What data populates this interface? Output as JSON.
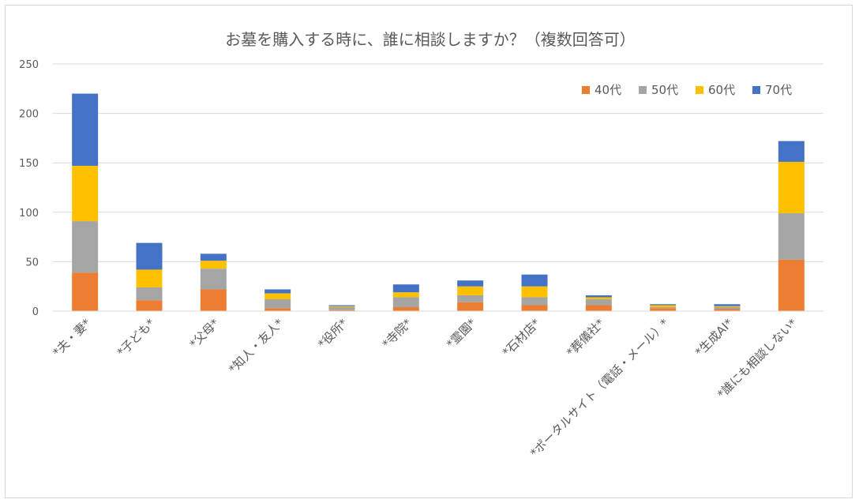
{
  "chart_data": {
    "type": "bar",
    "stacked": true,
    "title": "お墓を購入する時に、誰に相談しますか？（複数回答可）",
    "categories": [
      "*夫・妻*",
      "*子ども*",
      "*父母*",
      "*知人・友人*",
      "*役所*",
      "*寺院*",
      "*霊園*",
      "*石材店*",
      "*葬儀社*",
      "*ポータルサイト（電話・メール）*",
      "*生成AI*",
      "*誰にも相談しない*"
    ],
    "series": [
      {
        "name": "40代",
        "color": "#ED7D31",
        "values": [
          39,
          11,
          22,
          3,
          1,
          4,
          9,
          6,
          6,
          3,
          2,
          52
        ]
      },
      {
        "name": "50代",
        "color": "#A5A5A5",
        "values": [
          52,
          13,
          21,
          9,
          3,
          10,
          7,
          8,
          6,
          1,
          2,
          47
        ]
      },
      {
        "name": "60代",
        "color": "#FFC000",
        "values": [
          56,
          18,
          8,
          6,
          1,
          5,
          9,
          11,
          2,
          2,
          1,
          52
        ]
      },
      {
        "name": "70代",
        "color": "#4472C4",
        "values": [
          73,
          27,
          7,
          4,
          1,
          8,
          6,
          12,
          2,
          1,
          2,
          21
        ]
      }
    ],
    "ylim": [
      0,
      250
    ],
    "yticks": [
      0,
      50,
      100,
      150,
      200,
      250
    ],
    "grid": true,
    "legend": "top-right"
  }
}
